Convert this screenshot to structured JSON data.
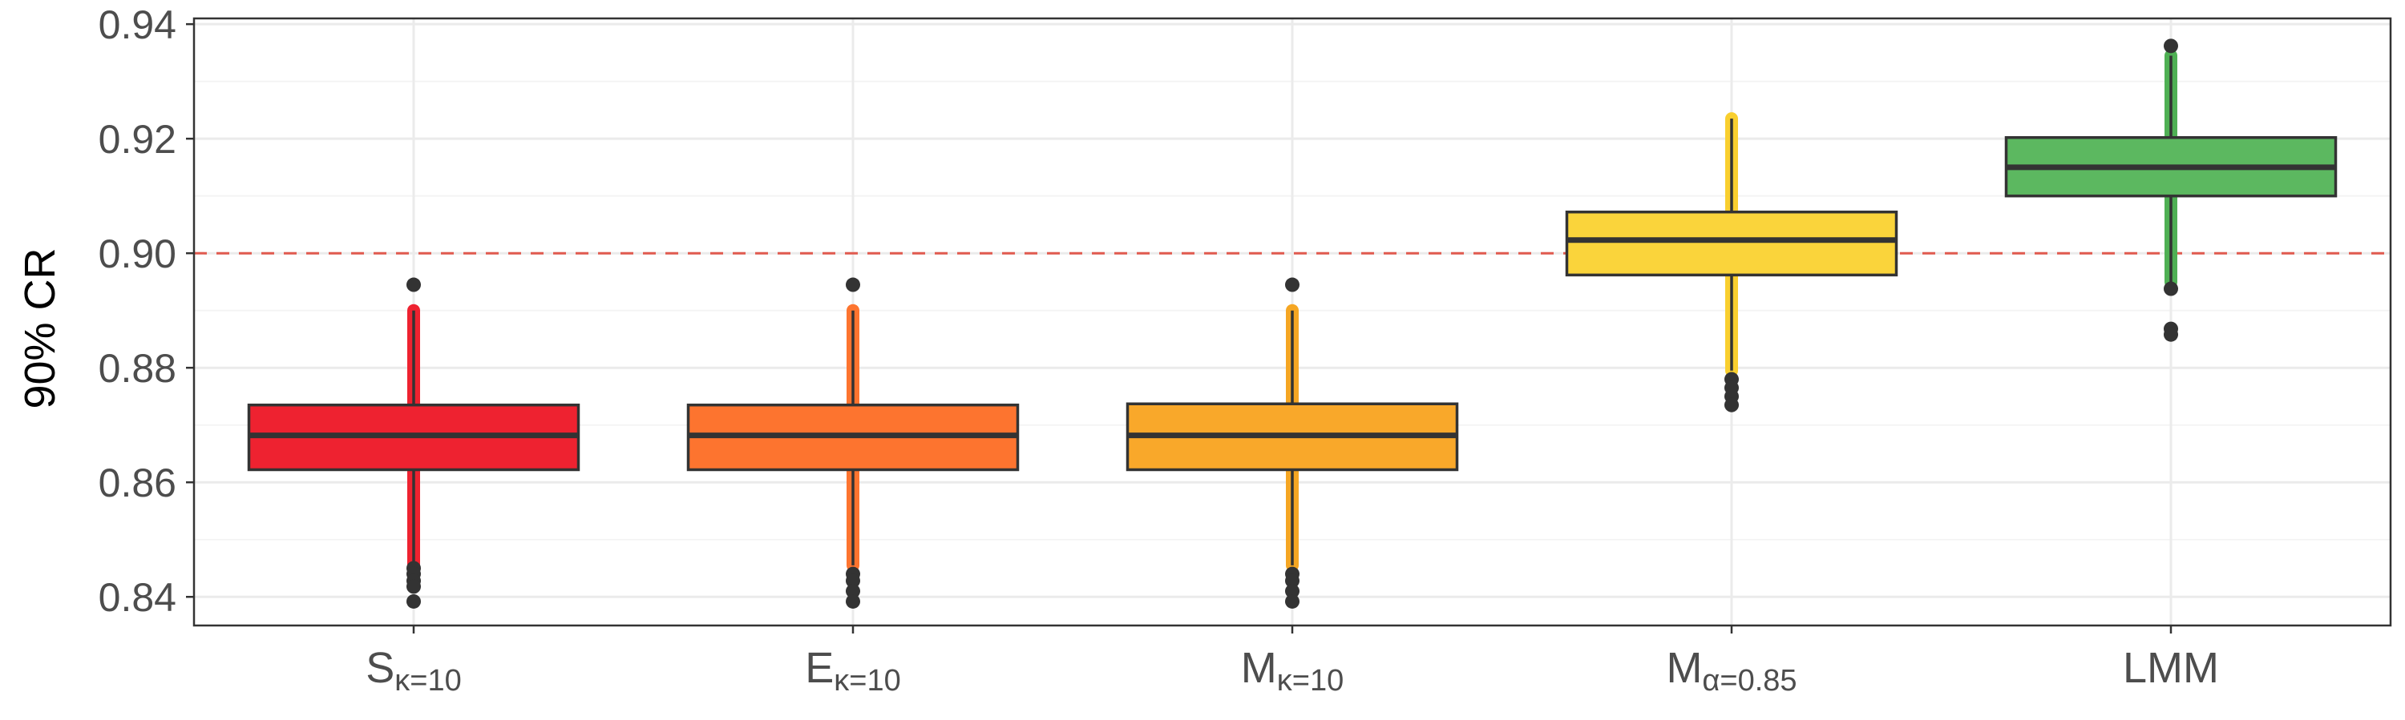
{
  "chart_data": {
    "type": "box",
    "ylabel": "90% CR",
    "xlabel": "",
    "ylim": [
      0.835,
      0.941
    ],
    "yticks": [
      0.84,
      0.86,
      0.88,
      0.9,
      0.92,
      0.94
    ],
    "ytick_labels": [
      "0.84",
      "0.86",
      "0.88",
      "0.90",
      "0.92",
      "0.94"
    ],
    "grid": true,
    "reference_line": {
      "y": 0.9,
      "style": "dashed",
      "color": "#e05a4f"
    },
    "categories": [
      {
        "main": "S",
        "sub": "κ=10"
      },
      {
        "main": "E",
        "sub": "κ=10"
      },
      {
        "main": "M",
        "sub": "κ=10"
      },
      {
        "main": "M",
        "sub": "α=0.85"
      },
      {
        "main": "LMM",
        "sub": ""
      }
    ],
    "boxes": [
      {
        "q1": 0.8622,
        "median": 0.8682,
        "q3": 0.8735,
        "whisker_low": 0.8455,
        "whisker_high": 0.89,
        "outliers": [
          0.8945,
          0.845,
          0.844,
          0.8428,
          0.8418,
          0.8392
        ],
        "fill": "#ee2230",
        "jitter_color": "#ee2230"
      },
      {
        "q1": 0.8622,
        "median": 0.8682,
        "q3": 0.8735,
        "whisker_low": 0.8455,
        "whisker_high": 0.89,
        "outliers": [
          0.8945,
          0.844,
          0.8428,
          0.841,
          0.8392
        ],
        "fill": "#fd742f",
        "jitter_color": "#fd742f"
      },
      {
        "q1": 0.8622,
        "median": 0.8682,
        "q3": 0.8737,
        "whisker_low": 0.8455,
        "whisker_high": 0.89,
        "outliers": [
          0.8945,
          0.844,
          0.8428,
          0.841,
          0.8392
        ],
        "fill": "#f9a82a",
        "jitter_color": "#f5a623"
      },
      {
        "q1": 0.8962,
        "median": 0.9023,
        "q3": 0.9072,
        "whisker_low": 0.8795,
        "whisker_high": 0.9235,
        "outliers": [
          0.878,
          0.8765,
          0.875,
          0.8735
        ],
        "fill": "#fad43b",
        "jitter_color": "#f9cf2f"
      },
      {
        "q1": 0.91,
        "median": 0.915,
        "q3": 0.9202,
        "whisker_low": 0.895,
        "whisker_high": 0.9345,
        "outliers": [
          0.9362,
          0.8938,
          0.8868,
          0.8858
        ],
        "fill": "#5cb860",
        "jitter_color": "#4fb054"
      }
    ]
  }
}
